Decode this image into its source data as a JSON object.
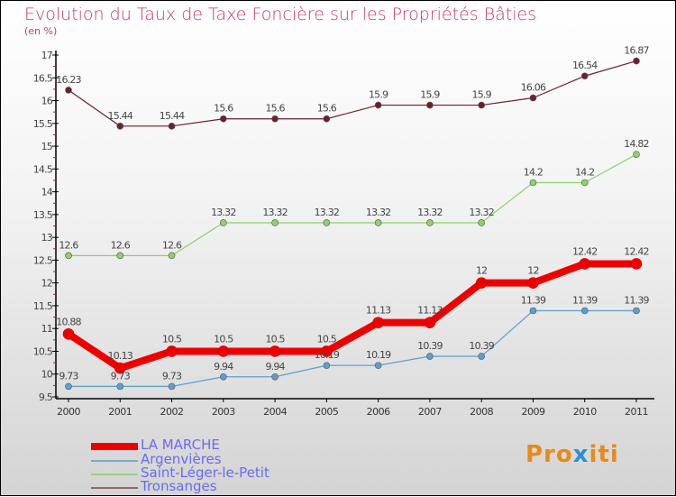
{
  "chart_data": {
    "type": "line",
    "title": "Evolution du Taux de Taxe Foncière sur les Propriétés Bâties",
    "ylabel": "(en %)",
    "xlabel": "",
    "x": [
      2000,
      2001,
      2002,
      2003,
      2004,
      2005,
      2006,
      2007,
      2008,
      2009,
      2010,
      2011
    ],
    "ylim": [
      9.5,
      17
    ],
    "yticks": [
      "9.5",
      "10",
      "10.5",
      "11",
      "11.5",
      "12",
      "12.5",
      "13",
      "13.5",
      "14",
      "14.5",
      "15",
      "15.5",
      "16",
      "16.5",
      "17"
    ],
    "legend_position": "bottom-left",
    "series": [
      {
        "name": "Tronsanges",
        "color": "#6e1f28",
        "width": 1.2,
        "values": [
          16.23,
          15.44,
          15.44,
          15.6,
          15.6,
          15.6,
          15.9,
          15.9,
          15.9,
          16.06,
          16.54,
          16.87
        ]
      },
      {
        "name": "Saint-Léger-le-Petit",
        "color": "#8fd06a",
        "width": 1.2,
        "values": [
          12.6,
          12.6,
          12.6,
          13.32,
          13.32,
          13.32,
          13.32,
          13.32,
          13.32,
          14.2,
          14.2,
          14.82
        ]
      },
      {
        "name": "LA MARCHE",
        "color": "#ee0000",
        "width": 8,
        "values": [
          10.88,
          10.13,
          10.5,
          10.5,
          10.5,
          10.5,
          11.13,
          11.13,
          12,
          12,
          12.42,
          12.42
        ]
      },
      {
        "name": "Argenvières",
        "color": "#5d9fcf",
        "width": 1.2,
        "values": [
          9.73,
          9.73,
          9.73,
          9.94,
          9.94,
          10.19,
          10.19,
          10.39,
          10.39,
          11.39,
          11.39,
          11.39
        ]
      }
    ]
  },
  "legend": [
    "LA MARCHE",
    "Argenvières",
    "Saint-Léger-le-Petit",
    "Tronsanges"
  ],
  "logo": {
    "p1": "Pro",
    "p2": "x",
    "p3": "iti"
  }
}
